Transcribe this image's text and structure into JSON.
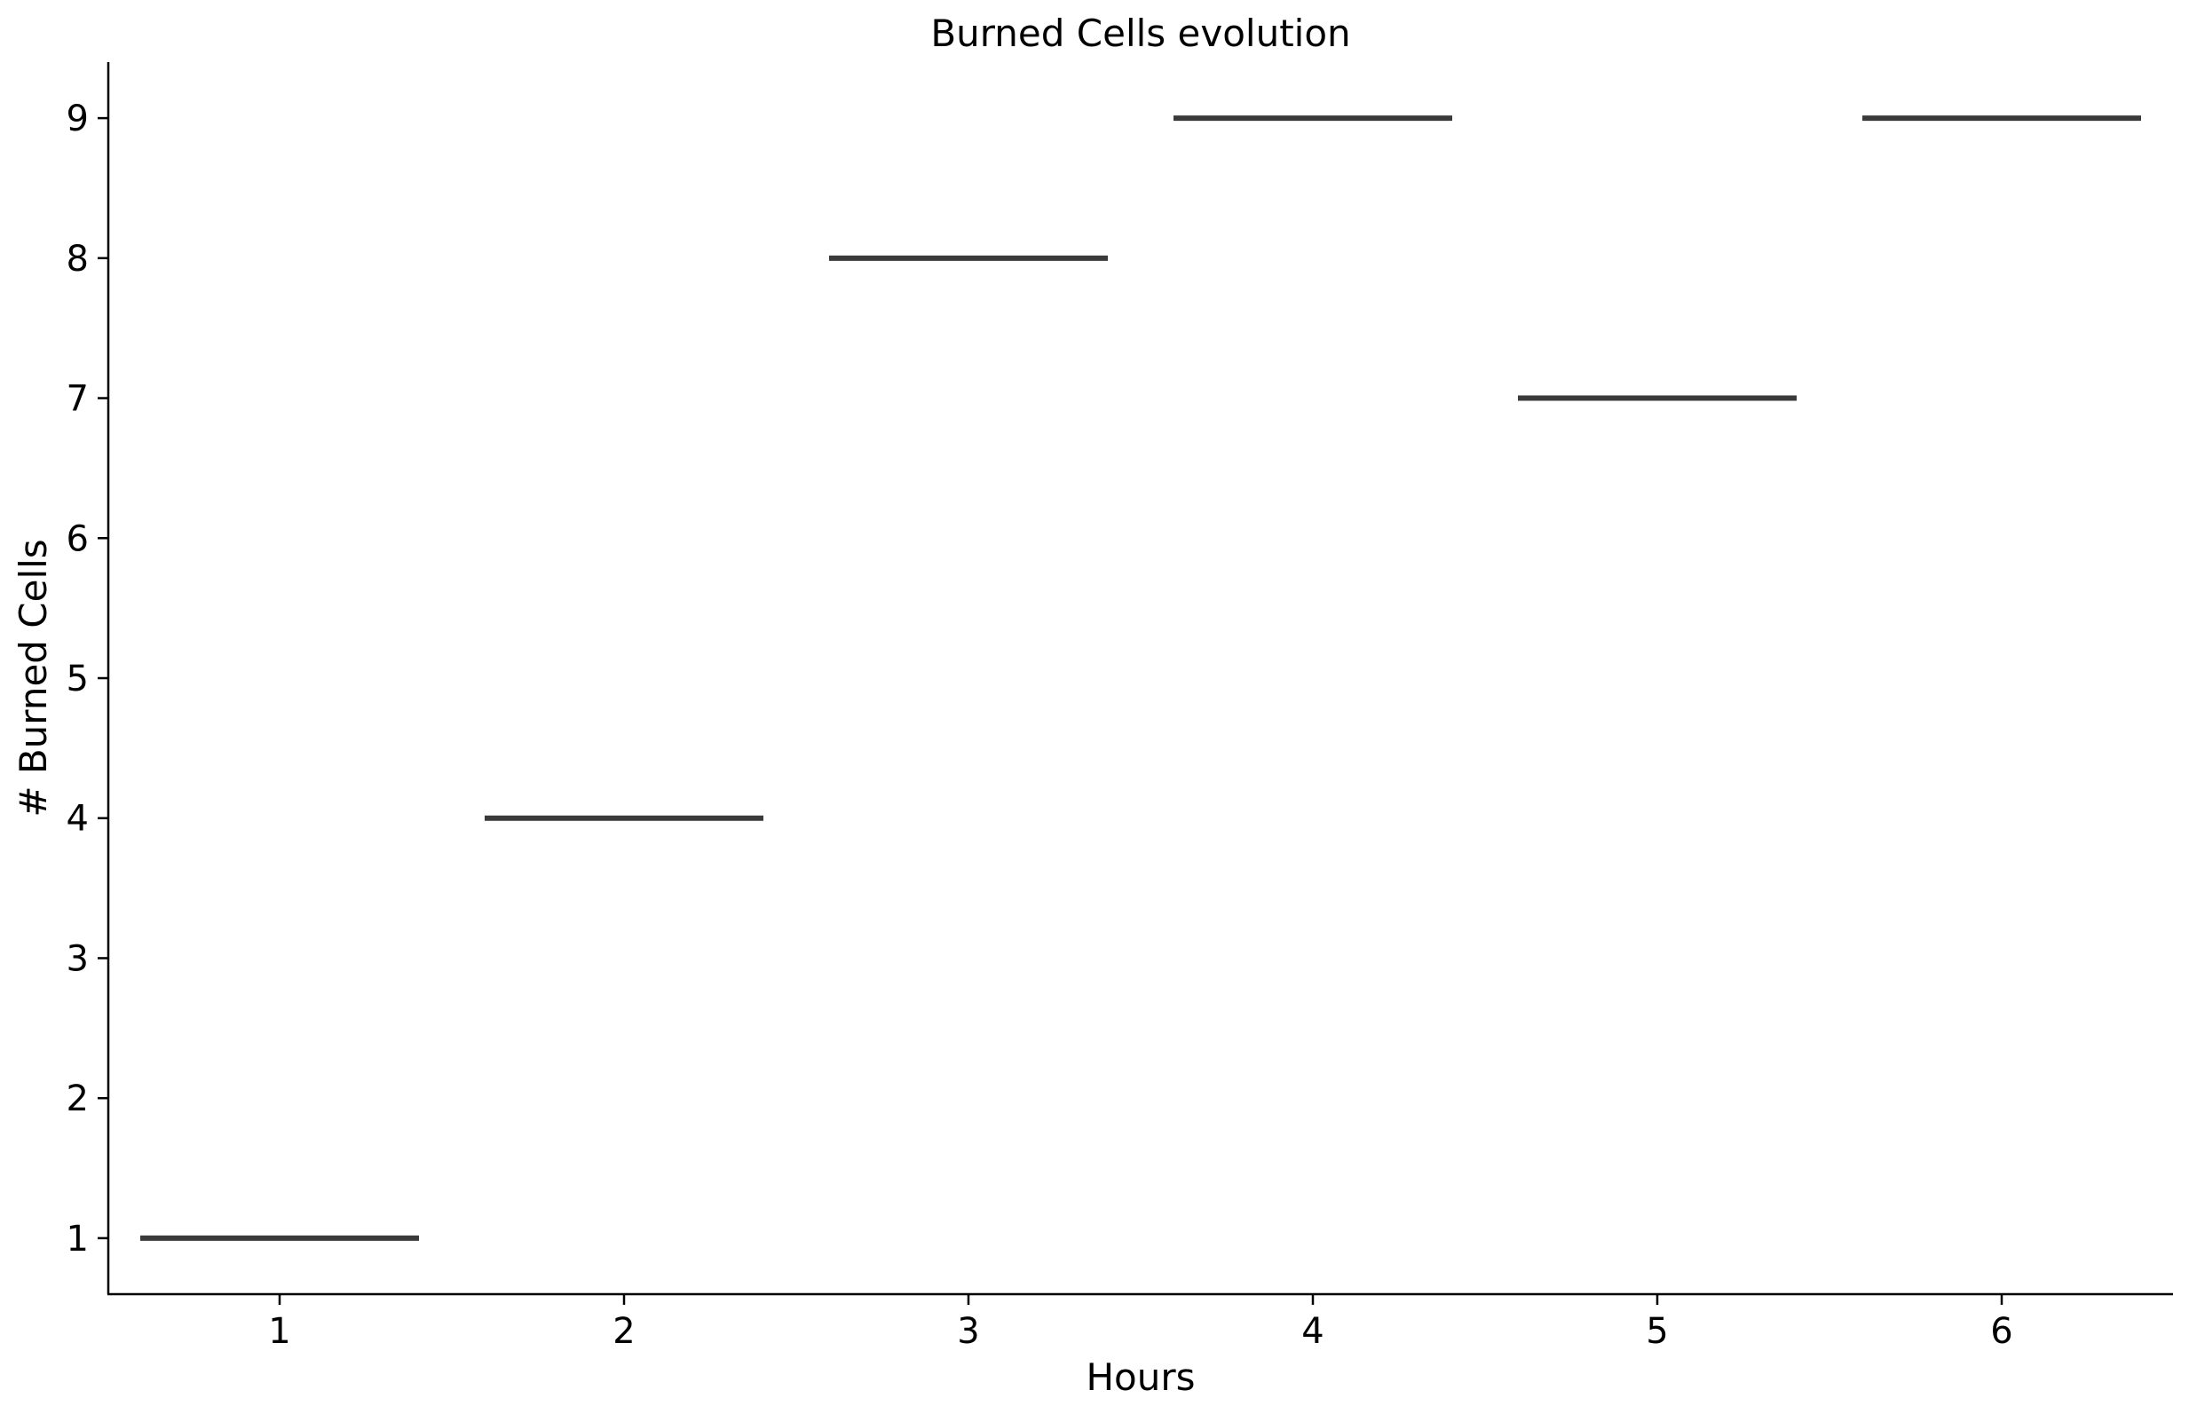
{
  "chart_data": {
    "type": "bar",
    "title": "Burned Cells evolution",
    "xlabel": "Hours",
    "ylabel": "# Burned Cells",
    "categories": [
      "1",
      "2",
      "3",
      "4",
      "5",
      "6"
    ],
    "values": [
      1,
      4,
      8,
      9,
      7,
      9
    ],
    "ylim": [
      0.6,
      9.4
    ],
    "yticks": [
      1,
      2,
      3,
      4,
      5,
      6,
      7,
      8,
      9
    ],
    "grid": false,
    "legend": "none",
    "mark_color": "#3a3a3a",
    "axis_color": "#000000"
  }
}
